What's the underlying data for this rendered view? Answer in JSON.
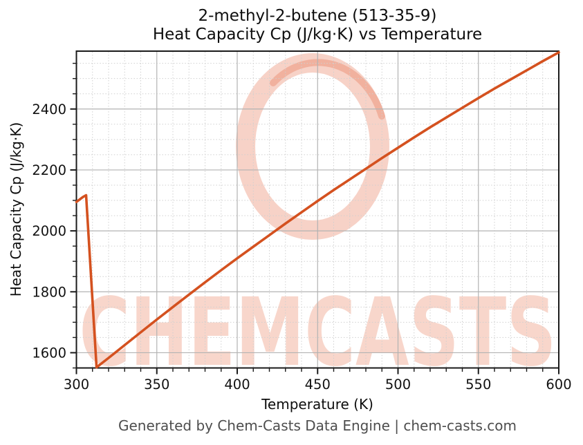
{
  "figure": {
    "title_line1": "2-methyl-2-butene (513-35-9)",
    "title_line2": "Heat Capacity Cp (J/kg·K) vs Temperature",
    "footer": "Generated by Chem-Casts Data Engine | chem-casts.com"
  },
  "watermark": {
    "text": "CHEMCASTS"
  },
  "colors": {
    "line": "#d4511f",
    "watermark_text": "rgba(226,90,48,0.25)",
    "watermark_ring": "rgba(226,90,48,0.27)",
    "grid_major": "#b2b2b2",
    "grid_minor": "#cfcfcf",
    "spine": "#1a1a1a",
    "tick_label": "#111111",
    "footer_text": "#4d4d4d"
  },
  "chart_data": {
    "type": "line",
    "title": "2-methyl-2-butene (513-35-9) Heat Capacity Cp (J/kg·K) vs Temperature",
    "xlabel": "Temperature (K)",
    "ylabel": "Heat Capacity Cp (J/kg·K)",
    "xlim": [
      300,
      600
    ],
    "ylim": [
      1550,
      2590
    ],
    "xticks": [
      300,
      350,
      400,
      450,
      500,
      550,
      600
    ],
    "yticks": [
      1600,
      1800,
      2000,
      2200,
      2400
    ],
    "x_minor_step": 10,
    "y_minor_step": 50,
    "grid": true,
    "legend_position": "none",
    "series": [
      {
        "name": "Heat Capacity Cp",
        "points": [
          [
            300,
            2095
          ],
          [
            302,
            2103
          ],
          [
            304,
            2111
          ],
          [
            306,
            2117
          ],
          [
            312.5,
            1552
          ],
          [
            320,
            1583
          ],
          [
            330,
            1625
          ],
          [
            340,
            1667
          ],
          [
            350,
            1709
          ],
          [
            360,
            1750
          ],
          [
            370,
            1791
          ],
          [
            380,
            1831
          ],
          [
            390,
            1871
          ],
          [
            400,
            1910
          ],
          [
            410,
            1948
          ],
          [
            420,
            1986
          ],
          [
            430,
            2024
          ],
          [
            440,
            2061
          ],
          [
            450,
            2098
          ],
          [
            460,
            2134
          ],
          [
            470,
            2169
          ],
          [
            480,
            2204
          ],
          [
            490,
            2239
          ],
          [
            500,
            2273
          ],
          [
            510,
            2307
          ],
          [
            520,
            2340
          ],
          [
            530,
            2372
          ],
          [
            540,
            2404
          ],
          [
            550,
            2436
          ],
          [
            560,
            2467
          ],
          [
            570,
            2497
          ],
          [
            580,
            2527
          ],
          [
            590,
            2557
          ],
          [
            600,
            2586
          ]
        ]
      }
    ]
  }
}
